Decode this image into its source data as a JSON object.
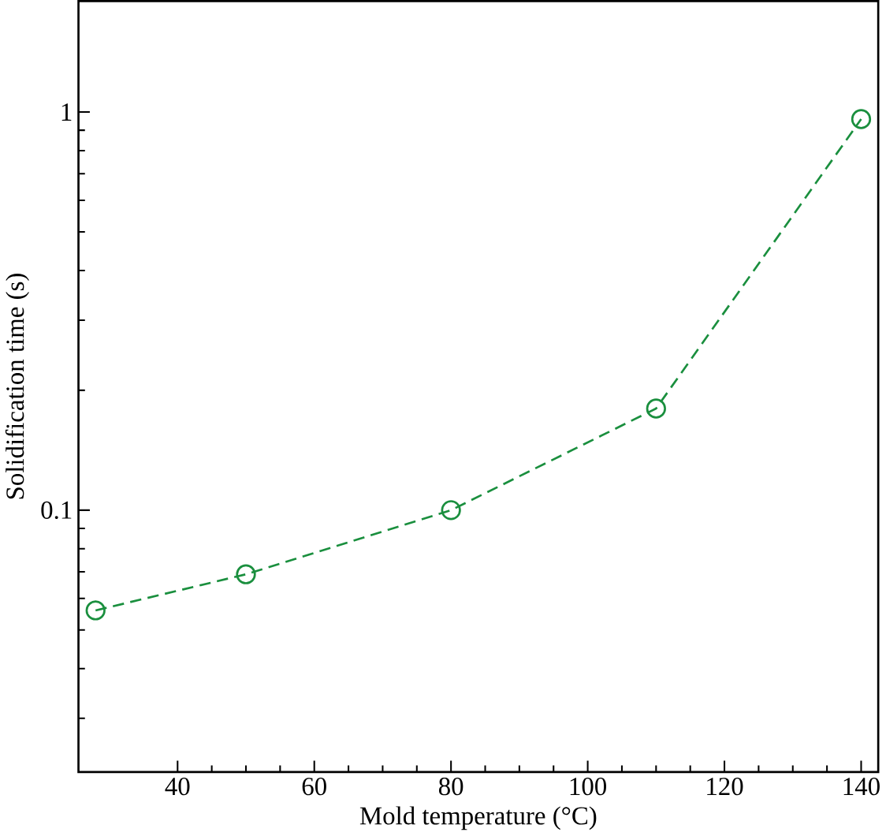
{
  "chart_data": {
    "type": "line",
    "xlabel": "Mold temperature (°C)",
    "ylabel": "Solidification time (s)",
    "x": [
      28,
      50,
      80,
      110,
      140
    ],
    "series": [
      {
        "color": "#1a8f3e",
        "values": [
          0.056,
          0.069,
          0.1,
          0.18,
          0.96
        ]
      }
    ],
    "xlim": [
      25.5,
      142.5
    ],
    "ylim": [
      0.022,
      1.9
    ],
    "log": "y",
    "xticks": [
      40,
      60,
      80,
      100,
      120,
      140
    ],
    "yticks": [
      0.1,
      1
    ],
    "grid": false,
    "marker": "circle",
    "line_style": "dashed"
  }
}
